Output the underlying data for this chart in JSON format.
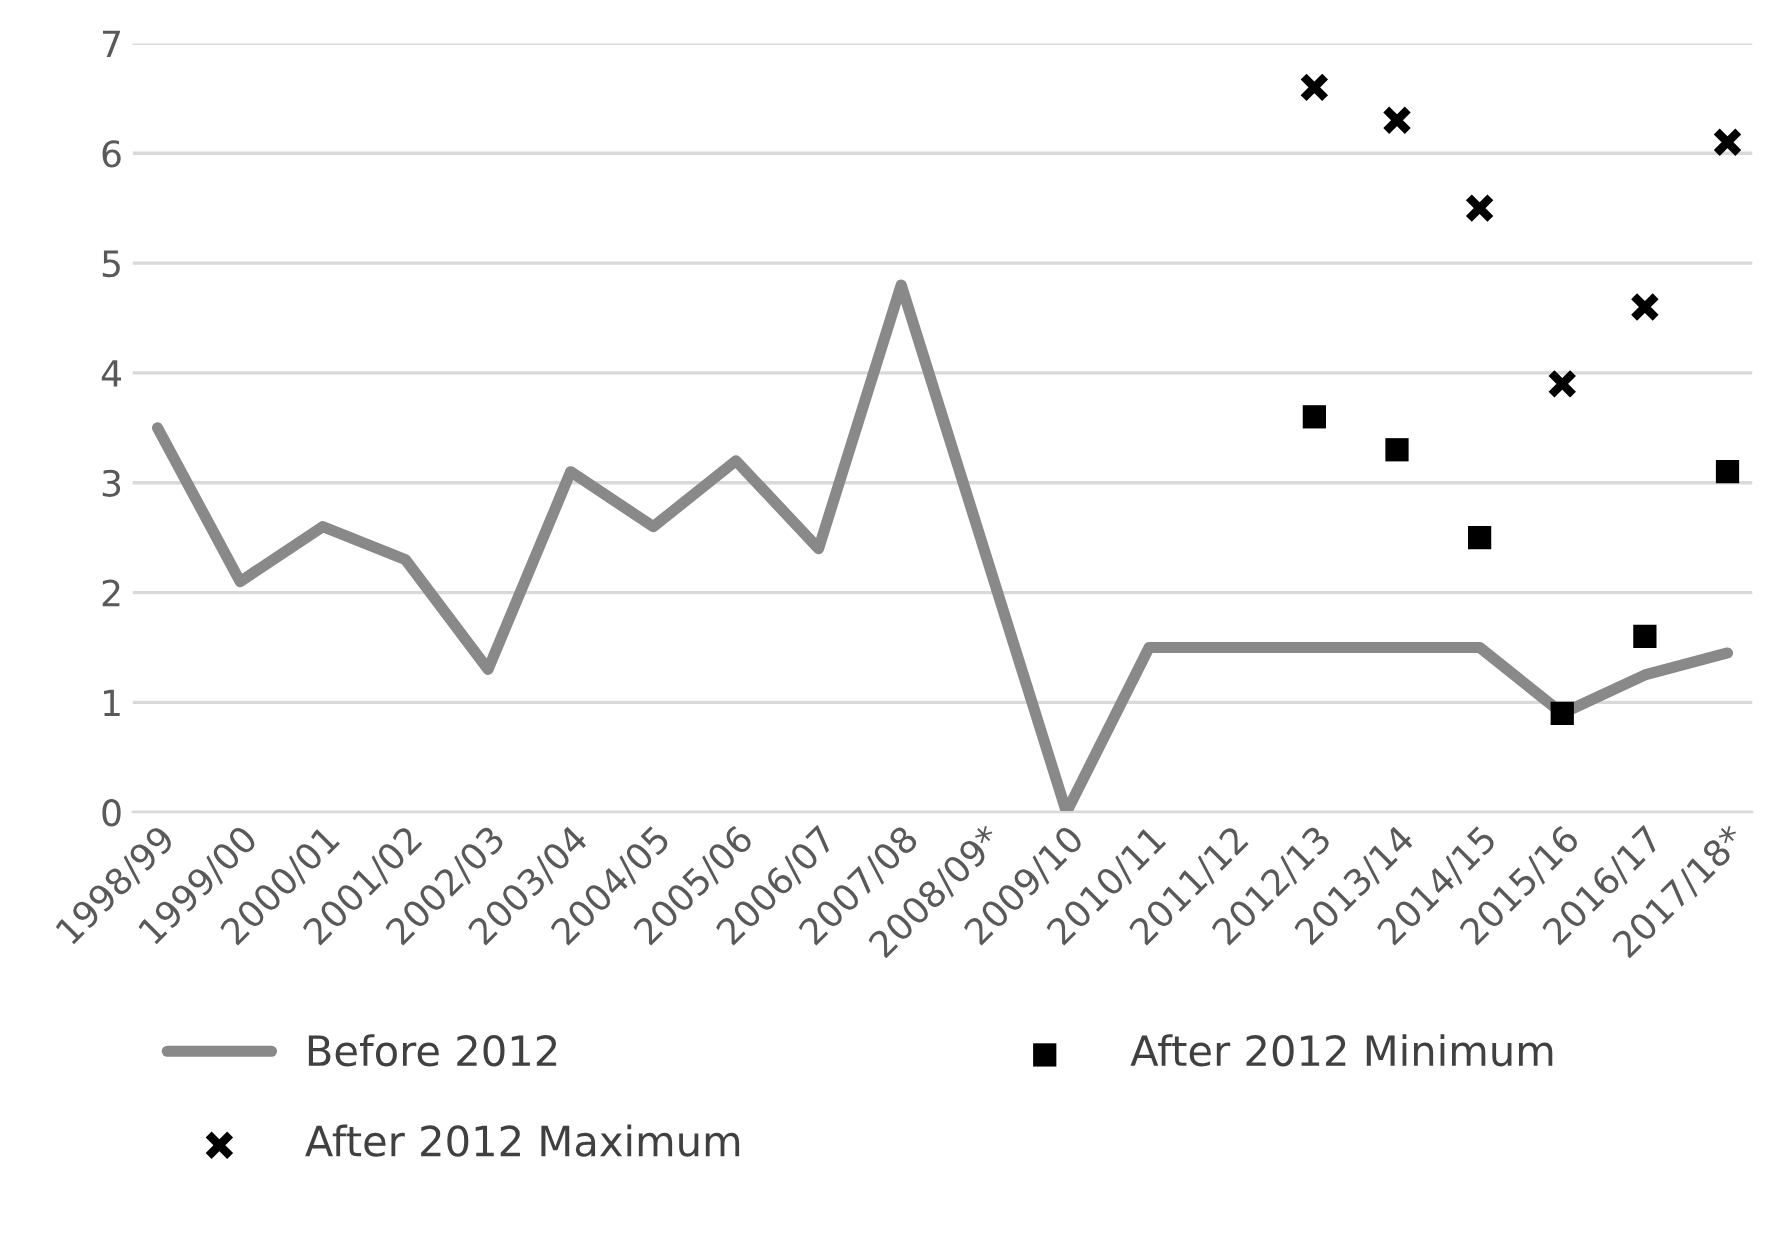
{
  "chart_data": {
    "type": "line",
    "categories": [
      "1998/99",
      "1999/00",
      "2000/01",
      "2001/02",
      "2002/03",
      "2003/04",
      "2004/05",
      "2005/06",
      "2006/07",
      "2007/08",
      "2008/09*",
      "2009/10",
      "2010/11",
      "2011/12",
      "2012/13",
      "2013/14",
      "2014/15",
      "2015/16",
      "2016/17",
      "2017/18*"
    ],
    "series": [
      {
        "name": "Before 2012",
        "color": "#898989",
        "values": [
          3.5,
          2.1,
          2.6,
          2.3,
          1.3,
          3.1,
          2.6,
          3.2,
          2.4,
          4.8,
          2.4,
          0,
          1.5,
          1.5,
          1.5,
          1.5,
          1.5,
          0.9,
          1.25,
          1.45
        ]
      },
      {
        "name": "After 2012 Minimum",
        "type": "scatter",
        "marker": "square",
        "color": "#000000",
        "values": [
          null,
          null,
          null,
          null,
          null,
          null,
          null,
          null,
          null,
          null,
          null,
          null,
          null,
          null,
          3.6,
          3.3,
          2.5,
          0.9,
          1.6,
          3.1
        ]
      },
      {
        "name": "After 2012 Maximum",
        "type": "scatter",
        "marker": "cross",
        "color": "#000000",
        "values": [
          null,
          null,
          null,
          null,
          null,
          null,
          null,
          null,
          null,
          null,
          null,
          null,
          null,
          null,
          6.6,
          6.3,
          5.5,
          3.9,
          4.6,
          6.1
        ]
      }
    ],
    "ylim": [
      0,
      7
    ],
    "yticks": [
      0,
      1,
      2,
      3,
      4,
      5,
      6,
      7
    ],
    "grid": "y",
    "legend": "bottom"
  }
}
